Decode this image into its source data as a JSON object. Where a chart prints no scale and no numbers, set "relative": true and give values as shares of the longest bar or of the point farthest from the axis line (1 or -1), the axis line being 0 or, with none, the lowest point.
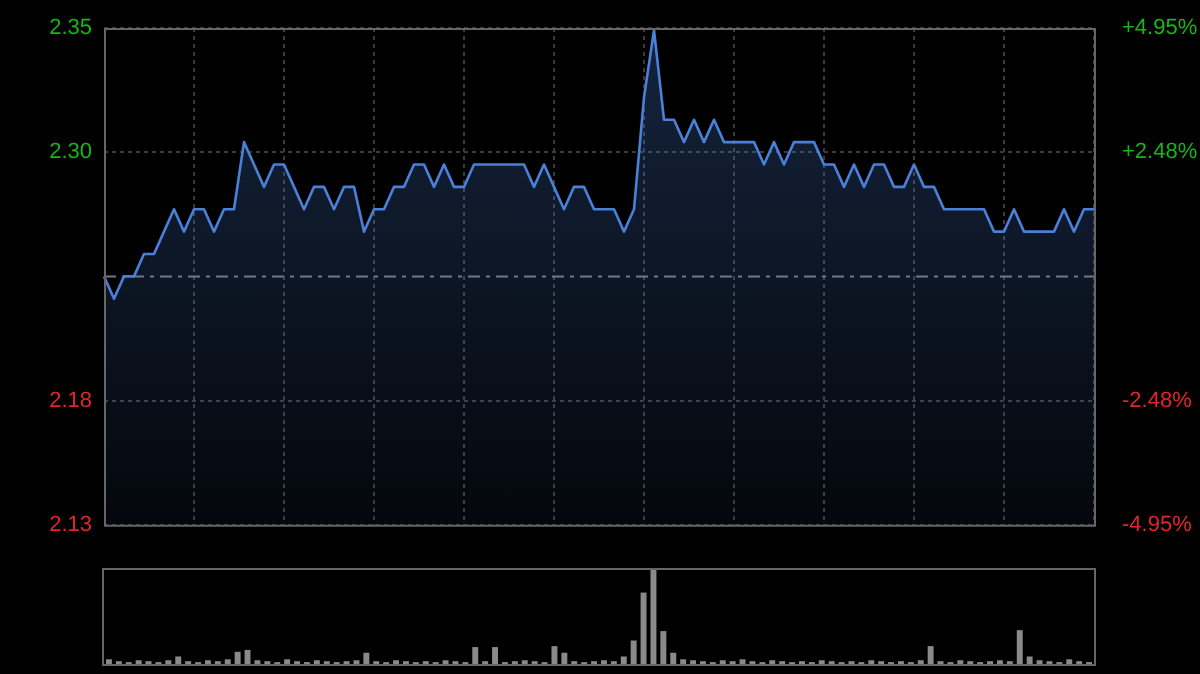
{
  "chart_data": [
    {
      "type": "area",
      "categories": [
        null,
        null,
        null,
        null,
        null,
        null,
        null,
        null,
        null,
        null,
        null,
        null,
        null,
        null,
        null,
        null,
        null,
        null,
        null,
        null,
        null,
        null,
        null,
        null,
        null,
        null,
        null,
        null,
        null,
        null,
        null,
        null,
        null,
        null,
        null,
        null,
        null,
        null,
        null,
        null,
        null,
        null,
        null,
        null,
        null,
        null,
        null,
        null,
        null,
        null,
        null,
        null,
        null,
        null,
        null,
        null,
        null,
        null,
        null,
        null,
        null,
        null,
        null,
        null,
        null,
        null,
        null,
        null,
        null,
        null,
        null,
        null,
        null,
        null,
        null,
        null,
        null,
        null,
        null,
        null,
        null,
        null,
        null,
        null,
        null,
        null,
        null,
        null,
        null,
        null,
        null,
        null,
        null,
        null,
        null,
        null,
        null,
        null,
        null,
        null
      ],
      "series": [
        {
          "color": "#4a80d8",
          "values": [
            2.24,
            2.23,
            2.24,
            2.24,
            2.25,
            2.25,
            2.26,
            2.27,
            2.26,
            2.27,
            2.27,
            2.26,
            2.27,
            2.27,
            2.3,
            2.29,
            2.28,
            2.29,
            2.29,
            2.28,
            2.27,
            2.28,
            2.28,
            2.27,
            2.28,
            2.28,
            2.26,
            2.27,
            2.27,
            2.28,
            2.28,
            2.29,
            2.29,
            2.28,
            2.29,
            2.28,
            2.28,
            2.29,
            2.29,
            2.29,
            2.29,
            2.29,
            2.29,
            2.28,
            2.29,
            2.28,
            2.27,
            2.28,
            2.28,
            2.27,
            2.27,
            2.27,
            2.26,
            2.27,
            2.32,
            2.35,
            2.31,
            2.31,
            2.3,
            2.31,
            2.3,
            2.31,
            2.3,
            2.3,
            2.3,
            2.3,
            2.29,
            2.3,
            2.29,
            2.3,
            2.3,
            2.3,
            2.29,
            2.29,
            2.28,
            2.29,
            2.28,
            2.29,
            2.29,
            2.28,
            2.28,
            2.29,
            2.28,
            2.28,
            2.27,
            2.27,
            2.27,
            2.27,
            2.27,
            2.26,
            2.26,
            2.27,
            2.26,
            2.26,
            2.26,
            2.26,
            2.27,
            2.26,
            2.27,
            2.27
          ]
        }
      ],
      "ylim": [
        2.129,
        2.351
      ],
      "yticks": [
        {
          "value": 2.351,
          "label": "2.35"
        },
        {
          "value": 2.2955,
          "label": "2.30"
        },
        {
          "value": 2.1845,
          "label": "2.18"
        },
        {
          "value": 2.129,
          "label": "2.13"
        }
      ],
      "y2lim": [
        -4.95,
        4.95
      ],
      "y2ticks": [
        {
          "value": 4.95,
          "label": "+4.95%"
        },
        {
          "value": 2.48,
          "label": "+2.48%"
        },
        {
          "value": -2.48,
          "label": "-2.48%"
        },
        {
          "value": -4.95,
          "label": "-4.95%"
        }
      ],
      "ref_lines": [
        {
          "axis": "y",
          "value": 2.24,
          "color": "#777777",
          "line_style": "dashed"
        }
      ],
      "grid": true,
      "legend": false
    },
    {
      "type": "bar",
      "relative": true,
      "categories": [
        null,
        null,
        null,
        null,
        null,
        null,
        null,
        null,
        null,
        null,
        null,
        null,
        null,
        null,
        null,
        null,
        null,
        null,
        null,
        null,
        null,
        null,
        null,
        null,
        null,
        null,
        null,
        null,
        null,
        null,
        null,
        null,
        null,
        null,
        null,
        null,
        null,
        null,
        null,
        null,
        null,
        null,
        null,
        null,
        null,
        null,
        null,
        null,
        null,
        null,
        null,
        null,
        null,
        null,
        null,
        null,
        null,
        null,
        null,
        null,
        null,
        null,
        null,
        null,
        null,
        null,
        null,
        null,
        null,
        null,
        null,
        null,
        null,
        null,
        null,
        null,
        null,
        null,
        null,
        null,
        null,
        null,
        null,
        null,
        null,
        null,
        null,
        null,
        null,
        null,
        null,
        null,
        null,
        null,
        null,
        null,
        null,
        null,
        null,
        null
      ],
      "series": [
        {
          "color": "#8a8a8a",
          "values": [
            0.05,
            0.03,
            0.02,
            0.04,
            0.03,
            0.02,
            0.04,
            0.08,
            0.03,
            0.02,
            0.04,
            0.03,
            0.05,
            0.13,
            0.15,
            0.04,
            0.03,
            0.02,
            0.05,
            0.03,
            0.02,
            0.04,
            0.03,
            0.02,
            0.03,
            0.04,
            0.12,
            0.03,
            0.02,
            0.04,
            0.03,
            0.02,
            0.03,
            0.02,
            0.04,
            0.03,
            0.02,
            0.18,
            0.03,
            0.18,
            0.02,
            0.03,
            0.04,
            0.03,
            0.02,
            0.19,
            0.12,
            0.03,
            0.02,
            0.03,
            0.04,
            0.03,
            0.08,
            0.25,
            0.76,
            1,
            0.35,
            0.12,
            0.05,
            0.04,
            0.03,
            0.02,
            0.04,
            0.03,
            0.05,
            0.03,
            0.02,
            0.04,
            0.03,
            0.02,
            0.03,
            0.02,
            0.04,
            0.03,
            0.02,
            0.03,
            0.02,
            0.04,
            0.03,
            0.02,
            0.03,
            0.02,
            0.04,
            0.19,
            0.03,
            0.02,
            0.04,
            0.03,
            0.02,
            0.03,
            0.04,
            0.03,
            0.36,
            0.08,
            0.04,
            0.03,
            0.02,
            0.05,
            0.03,
            0.02
          ]
        }
      ],
      "grid": false,
      "legend": false
    }
  ]
}
